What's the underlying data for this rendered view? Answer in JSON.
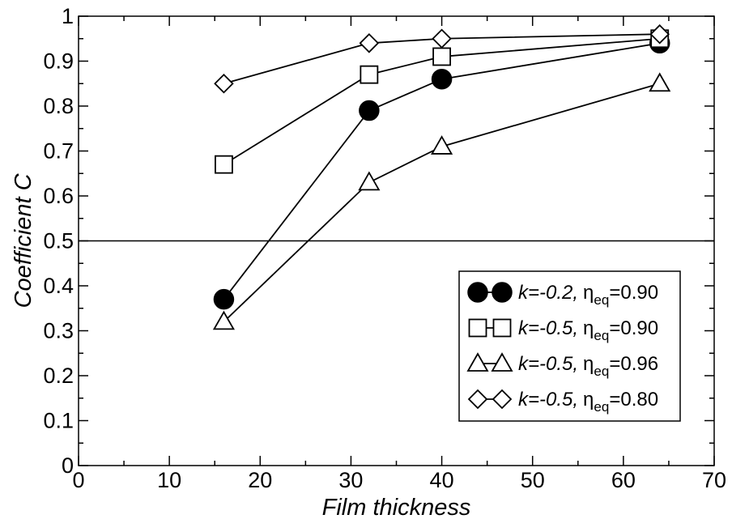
{
  "chart_data": {
    "type": "line",
    "title": "",
    "xlabel": "Film thickness",
    "ylabel": "Coefficient C",
    "xlim": [
      0,
      70
    ],
    "ylim": [
      0,
      1
    ],
    "xticks": [
      "0",
      "10",
      "20",
      "30",
      "40",
      "50",
      "60",
      "70"
    ],
    "yticks": [
      "0",
      "0.1",
      "0.2",
      "0.3",
      "0.4",
      "0.5",
      "0.6",
      "0.7",
      "0.8",
      "0.9",
      "1"
    ],
    "reference_line": {
      "y": 0.5,
      "color": "#000000"
    },
    "grid": false,
    "legend_position": "bottom-right",
    "series": [
      {
        "name": "k=-0.2, ηeq=0.90",
        "legend": {
          "k": "k=-0.2,",
          "eta": "η",
          "sub": "eq",
          "val": "=0.90"
        },
        "marker": "circle-filled",
        "x": [
          16,
          32,
          40,
          64
        ],
        "y": [
          0.37,
          0.79,
          0.86,
          0.94
        ]
      },
      {
        "name": "k=-0.5, ηeq=0.90",
        "legend": {
          "k": "k=-0.5,",
          "eta": "η",
          "sub": "eq",
          "val": "=0.90"
        },
        "marker": "square-open",
        "x": [
          16,
          32,
          40,
          64
        ],
        "y": [
          0.67,
          0.87,
          0.91,
          0.95
        ]
      },
      {
        "name": "k=-0.5, ηeq=0.96",
        "legend": {
          "k": "k=-0.5,",
          "eta": "η",
          "sub": "eq",
          "val": "=0.96"
        },
        "marker": "triangle-open",
        "x": [
          16,
          32,
          40,
          64
        ],
        "y": [
          0.32,
          0.63,
          0.71,
          0.85
        ]
      },
      {
        "name": "k=-0.5, ηeq=0.80",
        "legend": {
          "k": "k=-0.5,",
          "eta": "η",
          "sub": "eq",
          "val": "=0.80"
        },
        "marker": "diamond-open",
        "x": [
          16,
          32,
          40,
          64
        ],
        "y": [
          0.85,
          0.94,
          0.95,
          0.96
        ]
      }
    ]
  }
}
